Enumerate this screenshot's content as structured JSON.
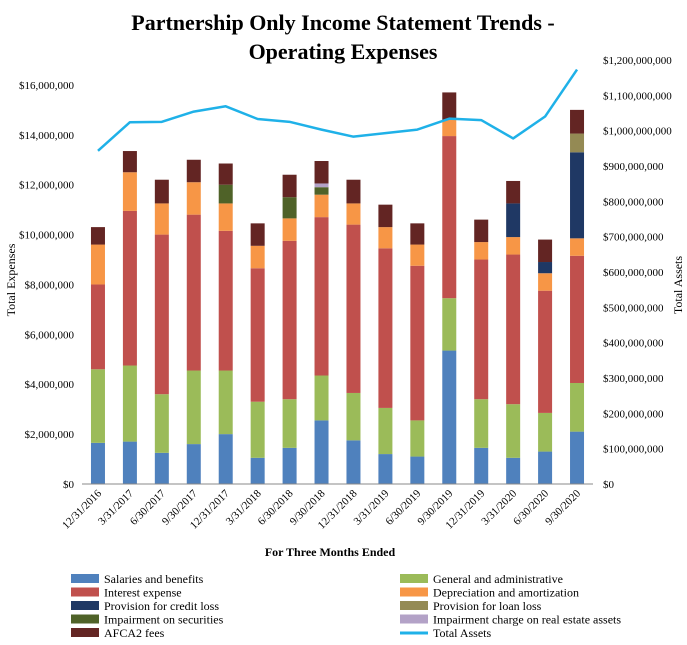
{
  "chart_data": {
    "type": "bar",
    "stacked": true,
    "title": [
      "Partnership Only Income Statement Trends -",
      "Operating Expenses"
    ],
    "xlabel": "For Three Months Ended",
    "ylabel": "Total Expenses",
    "y2label": "Total Assets",
    "ylim": [
      0,
      17000000
    ],
    "y2lim": [
      0,
      1200000000
    ],
    "yticks": [
      "$0",
      "$2,000,000",
      "$4,000,000",
      "$6,000,000",
      "$8,000,000",
      "$10,000,000",
      "$12,000,000",
      "$14,000,000",
      "$16,000,000"
    ],
    "ytick_values": [
      0,
      2000000,
      4000000,
      6000000,
      8000000,
      10000000,
      12000000,
      14000000,
      16000000
    ],
    "y2ticks": [
      "$0",
      "$100,000,000",
      "$200,000,000",
      "$300,000,000",
      "$400,000,000",
      "$500,000,000",
      "$600,000,000",
      "$700,000,000",
      "$800,000,000",
      "$900,000,000",
      "$1,000,000,000",
      "$1,100,000,000",
      "$1,200,000,000"
    ],
    "y2tick_values": [
      0,
      100000000,
      200000000,
      300000000,
      400000000,
      500000000,
      600000000,
      700000000,
      800000000,
      900000000,
      1000000000,
      1100000000,
      1200000000
    ],
    "grid": false,
    "legend_position": "bottom",
    "categories": [
      "12/31/2016",
      "3/31/2017",
      "6/30/2017",
      "9/30/2017",
      "12/31/2017",
      "3/31/2018",
      "6/30/2018",
      "9/30/2018",
      "12/31/2018",
      "3/31/2019",
      "6/30/2019",
      "9/30/2019",
      "12/31/2019",
      "3/31/2020",
      "6/30/2020",
      "9/30/2020"
    ],
    "series": [
      {
        "name": "Salaries and benefits",
        "color": "#4f81bd",
        "values": [
          1650000,
          1700000,
          1250000,
          1600000,
          2000000,
          1050000,
          1450000,
          2550000,
          1750000,
          1200000,
          1100000,
          5350000,
          1450000,
          1050000,
          1300000,
          2100000
        ]
      },
      {
        "name": "General and administrative",
        "color": "#9bbb59",
        "values": [
          2950000,
          3050000,
          2350000,
          2950000,
          2550000,
          2250000,
          1950000,
          1800000,
          1900000,
          1850000,
          1450000,
          2100000,
          1950000,
          2150000,
          1550000,
          1950000
        ]
      },
      {
        "name": "Interest expense",
        "color": "#c0504d",
        "values": [
          3400000,
          6200000,
          6400000,
          6250000,
          5600000,
          5350000,
          6350000,
          6350000,
          6750000,
          6400000,
          6200000,
          6500000,
          5600000,
          6000000,
          4900000,
          5100000
        ]
      },
      {
        "name": "Depreciation and amortization",
        "color": "#f79646",
        "values": [
          1600000,
          1550000,
          1250000,
          1300000,
          1100000,
          900000,
          900000,
          900000,
          850000,
          850000,
          850000,
          650000,
          700000,
          700000,
          700000,
          700000
        ]
      },
      {
        "name": "Provision for credit loss",
        "color": "#1f3864",
        "values": [
          0,
          0,
          0,
          0,
          0,
          0,
          0,
          0,
          0,
          0,
          0,
          0,
          0,
          1350000,
          450000,
          3450000
        ]
      },
      {
        "name": "Provision for loan loss",
        "color": "#948a54",
        "values": [
          0,
          0,
          0,
          0,
          0,
          0,
          0,
          0,
          0,
          0,
          0,
          0,
          0,
          0,
          0,
          750000
        ]
      },
      {
        "name": "Impairment on securities",
        "color": "#4f6228",
        "values": [
          0,
          0,
          0,
          0,
          750000,
          0,
          850000,
          300000,
          0,
          0,
          0,
          0,
          0,
          0,
          0,
          0
        ]
      },
      {
        "name": "Impairment charge on real estate assets",
        "color": "#b3a2c7",
        "values": [
          0,
          0,
          0,
          0,
          0,
          0,
          0,
          150000,
          0,
          0,
          0,
          0,
          0,
          0,
          0,
          0
        ]
      },
      {
        "name": "AFCA2 fees",
        "color": "#632523",
        "values": [
          700000,
          850000,
          950000,
          900000,
          850000,
          900000,
          900000,
          900000,
          950000,
          900000,
          850000,
          1100000,
          900000,
          900000,
          900000,
          950000
        ]
      }
    ],
    "line_series": {
      "name": "Total Assets",
      "color": "#1fb1e8",
      "axis": "secondary",
      "values": [
        943000000,
        1024000000,
        1025000000,
        1054000000,
        1069000000,
        1033000000,
        1025000000,
        1003000000,
        983000000,
        993000000,
        1003000000,
        1034000000,
        1030000000,
        978000000,
        1040000000,
        1173000000
      ]
    }
  }
}
